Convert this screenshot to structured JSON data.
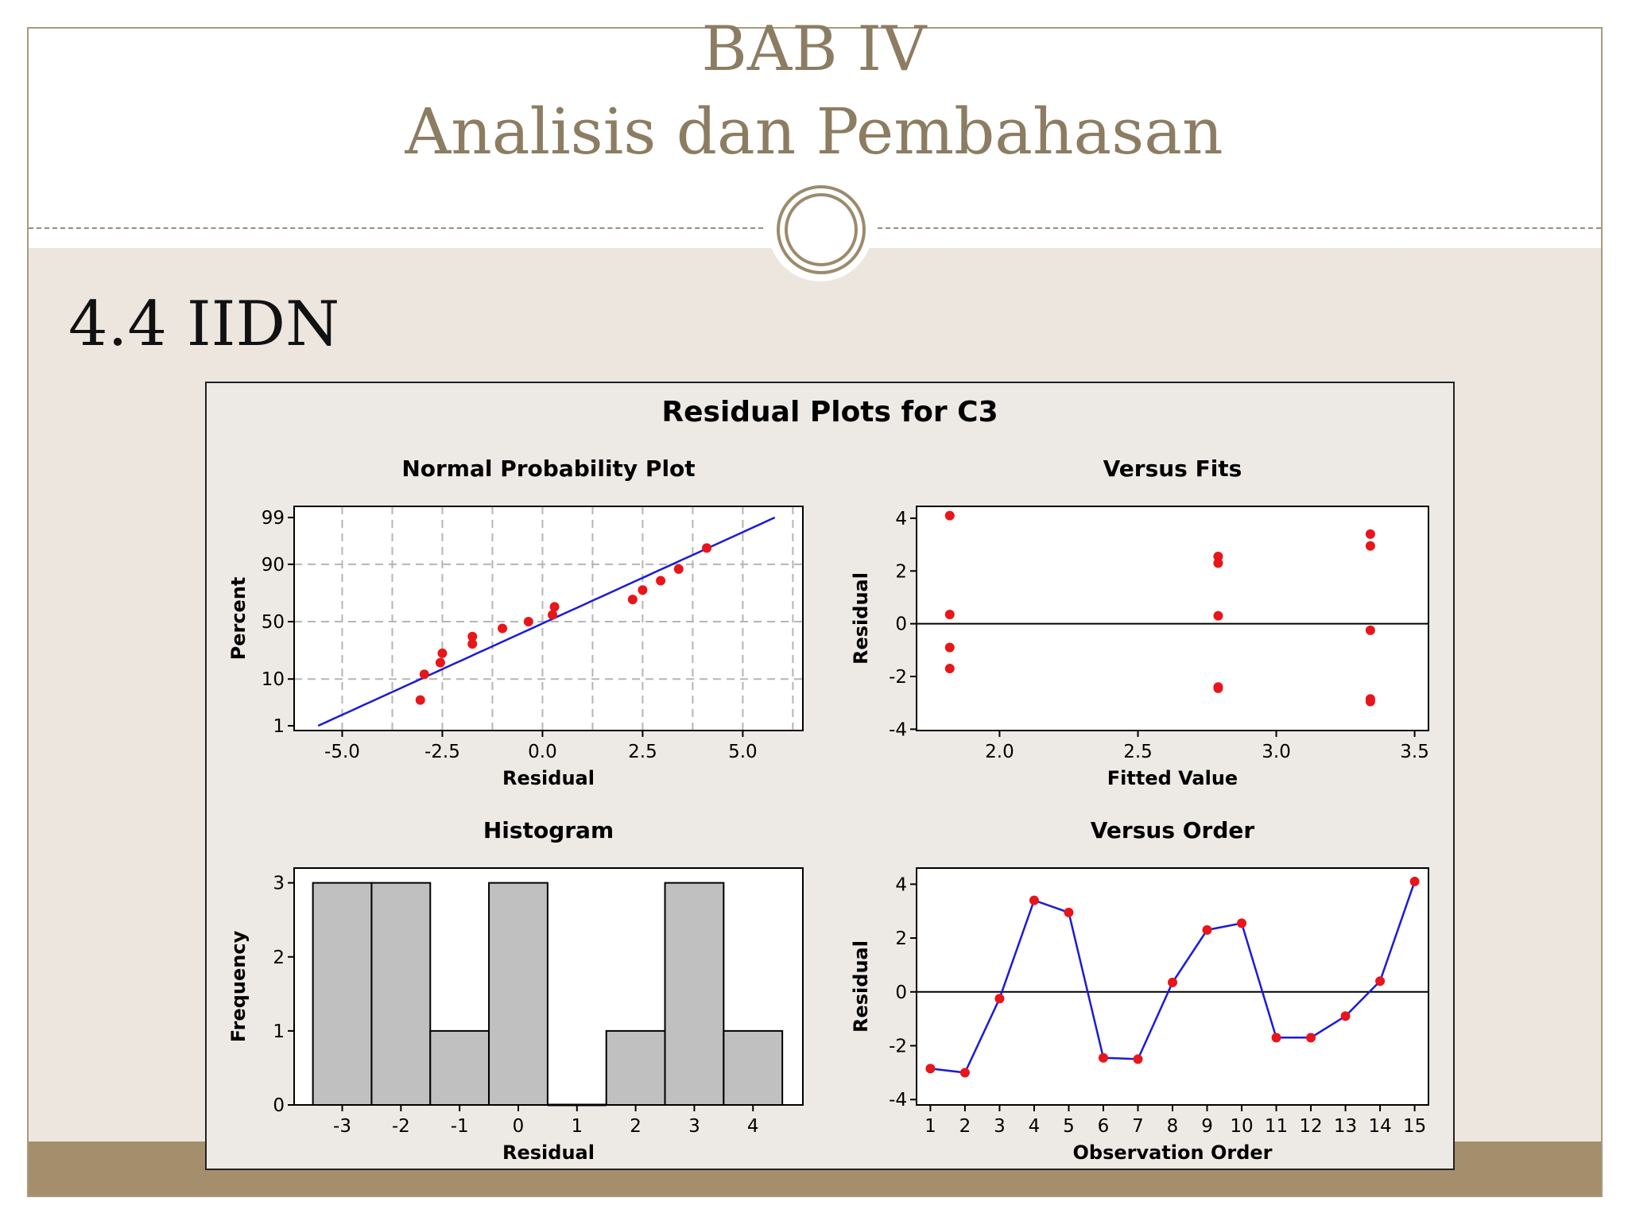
{
  "slide": {
    "title_line1": "BAB IV",
    "title_line2": "Analisis dan Pembahasan",
    "section": "4.4 IIDN",
    "colors": {
      "title": "#8c7d62",
      "frame": "#a89a7e",
      "footer": "#a48e6c",
      "background": "#ece6de"
    }
  },
  "chart_data": [
    {
      "type": "scatter",
      "title": "Normal Probability Plot",
      "suptitle": "Residual Plots for C3",
      "xlabel": "Residual",
      "ylabel": "Percent",
      "x_ticks": [
        "-5.0",
        "-2.5",
        "0.0",
        "2.5",
        "5.0"
      ],
      "y_ticks": [
        "1",
        "10",
        "50",
        "90",
        "99"
      ],
      "xlim": [
        -6.2,
        6.5
      ],
      "y_scale": "normal-probability",
      "grid": true,
      "points": [
        {
          "x": -3.05,
          "y": 4
        },
        {
          "x": -2.95,
          "y": 12
        },
        {
          "x": -2.55,
          "y": 18
        },
        {
          "x": -2.5,
          "y": 24
        },
        {
          "x": -1.75,
          "y": 31
        },
        {
          "x": -1.75,
          "y": 37
        },
        {
          "x": -1.0,
          "y": 44
        },
        {
          "x": -0.35,
          "y": 50
        },
        {
          "x": 0.25,
          "y": 56
        },
        {
          "x": 0.3,
          "y": 63
        },
        {
          "x": 2.25,
          "y": 69
        },
        {
          "x": 2.5,
          "y": 76
        },
        {
          "x": 2.95,
          "y": 82
        },
        {
          "x": 3.4,
          "y": 88
        },
        {
          "x": 4.1,
          "y": 95
        }
      ],
      "fit_line": {
        "x": [
          -5.6,
          5.8
        ],
        "y": [
          1,
          99
        ]
      }
    },
    {
      "type": "scatter",
      "title": "Versus Fits",
      "xlabel": "Fitted Value",
      "ylabel": "Residual",
      "x_ticks": [
        "2.0",
        "2.5",
        "3.0",
        "3.5"
      ],
      "y_ticks": [
        "-4",
        "-2",
        "0",
        "2",
        "4"
      ],
      "xlim": [
        1.7,
        3.55
      ],
      "ylim": [
        -4.05,
        4.45
      ],
      "reference_line": 0,
      "points": [
        {
          "x": 1.82,
          "y": 4.1
        },
        {
          "x": 1.82,
          "y": 0.35
        },
        {
          "x": 1.82,
          "y": -0.9
        },
        {
          "x": 1.82,
          "y": -1.7
        },
        {
          "x": 2.79,
          "y": 2.55
        },
        {
          "x": 2.79,
          "y": 2.3
        },
        {
          "x": 2.79,
          "y": 0.3
        },
        {
          "x": 2.79,
          "y": -2.4
        },
        {
          "x": 2.79,
          "y": -2.45
        },
        {
          "x": 3.34,
          "y": 3.4
        },
        {
          "x": 3.34,
          "y": 2.95
        },
        {
          "x": 3.34,
          "y": -0.25
        },
        {
          "x": 3.34,
          "y": -2.85
        },
        {
          "x": 3.34,
          "y": -2.95
        }
      ]
    },
    {
      "type": "bar",
      "title": "Histogram",
      "xlabel": "Residual",
      "ylabel": "Frequency",
      "x_ticks": [
        "-3",
        "-2",
        "-1",
        "0",
        "1",
        "2",
        "3",
        "4"
      ],
      "y_ticks": [
        "0",
        "1",
        "2",
        "3"
      ],
      "ylim": [
        0,
        3.2
      ],
      "xlim": [
        -3.82,
        4.85
      ],
      "bin_width": 1,
      "categories": [
        "-3",
        "-2",
        "-1",
        "0",
        "1",
        "2",
        "3",
        "4"
      ],
      "values": [
        3,
        3,
        1,
        3,
        0,
        1,
        3,
        1
      ]
    },
    {
      "type": "line",
      "title": "Versus Order",
      "xlabel": "Observation Order",
      "ylabel": "Residual",
      "x_ticks": [
        "1",
        "2",
        "3",
        "4",
        "5",
        "6",
        "7",
        "8",
        "9",
        "10",
        "11",
        "12",
        "13",
        "14",
        "15"
      ],
      "y_ticks": [
        "-4",
        "-2",
        "0",
        "2",
        "4"
      ],
      "xlim": [
        0.6,
        15.4
      ],
      "ylim": [
        -4.2,
        4.6
      ],
      "reference_line": 0,
      "x": [
        1,
        2,
        3,
        4,
        5,
        6,
        7,
        8,
        9,
        10,
        11,
        12,
        13,
        14,
        15
      ],
      "y": [
        -2.85,
        -3.0,
        -0.25,
        3.4,
        2.95,
        -2.45,
        -2.5,
        0.35,
        2.3,
        2.55,
        -1.7,
        -1.7,
        -0.9,
        0.4,
        4.1
      ]
    }
  ]
}
